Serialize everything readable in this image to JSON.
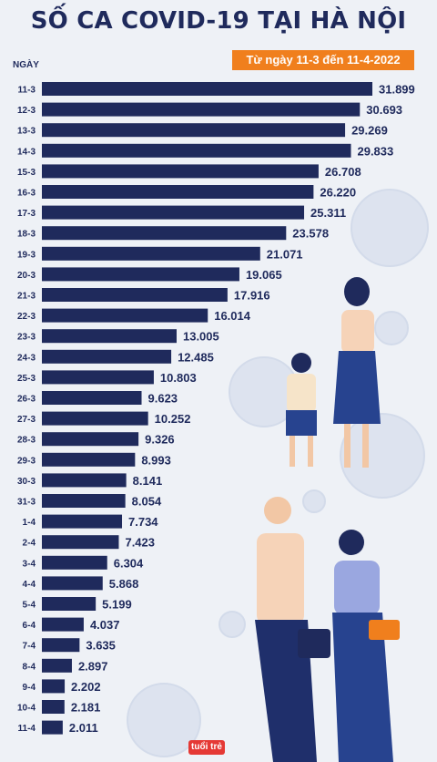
{
  "header": {
    "title": "SỐ CA COVID-19 TẠI HÀ NỘI",
    "subtitle": "Từ ngày 11-3 đến 11-4-2022"
  },
  "logo_text": "tuổi trẻ",
  "colors": {
    "bar": "#1f2a5c",
    "title": "#1f2a5c",
    "accent": "#f07f1d",
    "background": "#eef1f6"
  },
  "chart_data": {
    "type": "bar",
    "orientation": "horizontal",
    "title": "SỐ CA COVID-19 TẠI HÀ NỘI",
    "subtitle": "Từ ngày 11-3 đến 11-4-2022",
    "ylabel": "NGÀY",
    "categories": [
      "11-3",
      "12-3",
      "13-3",
      "14-3",
      "15-3",
      "16-3",
      "17-3",
      "18-3",
      "19-3",
      "20-3",
      "21-3",
      "22-3",
      "23-3",
      "24-3",
      "25-3",
      "26-3",
      "27-3",
      "28-3",
      "29-3",
      "30-3",
      "31-3",
      "1-4",
      "2-4",
      "3-4",
      "4-4",
      "5-4",
      "6-4",
      "7-4",
      "8-4",
      "9-4",
      "10-4",
      "11-4"
    ],
    "values": [
      31899,
      30693,
      29269,
      29833,
      26708,
      26220,
      25311,
      23578,
      21071,
      19065,
      17916,
      16014,
      13005,
      12485,
      10803,
      9623,
      10252,
      9326,
      8993,
      8141,
      8054,
      7734,
      7423,
      6304,
      5868,
      5199,
      4037,
      3635,
      2897,
      2202,
      2181,
      2011
    ],
    "value_labels": [
      "31.899",
      "30.693",
      "29.269",
      "29.833",
      "26.708",
      "26.220",
      "25.311",
      "23.578",
      "21.071",
      "19.065",
      "17.916",
      "16.014",
      "13.005",
      "12.485",
      "10.803",
      "9.623",
      "10.252",
      "9.326",
      "8.993",
      "8.141",
      "8.054",
      "7.734",
      "7.423",
      "6.304",
      "5.868",
      "5.199",
      "4.037",
      "3.635",
      "2.897",
      "2.202",
      "2.181",
      "2.011"
    ],
    "grid": false
  }
}
